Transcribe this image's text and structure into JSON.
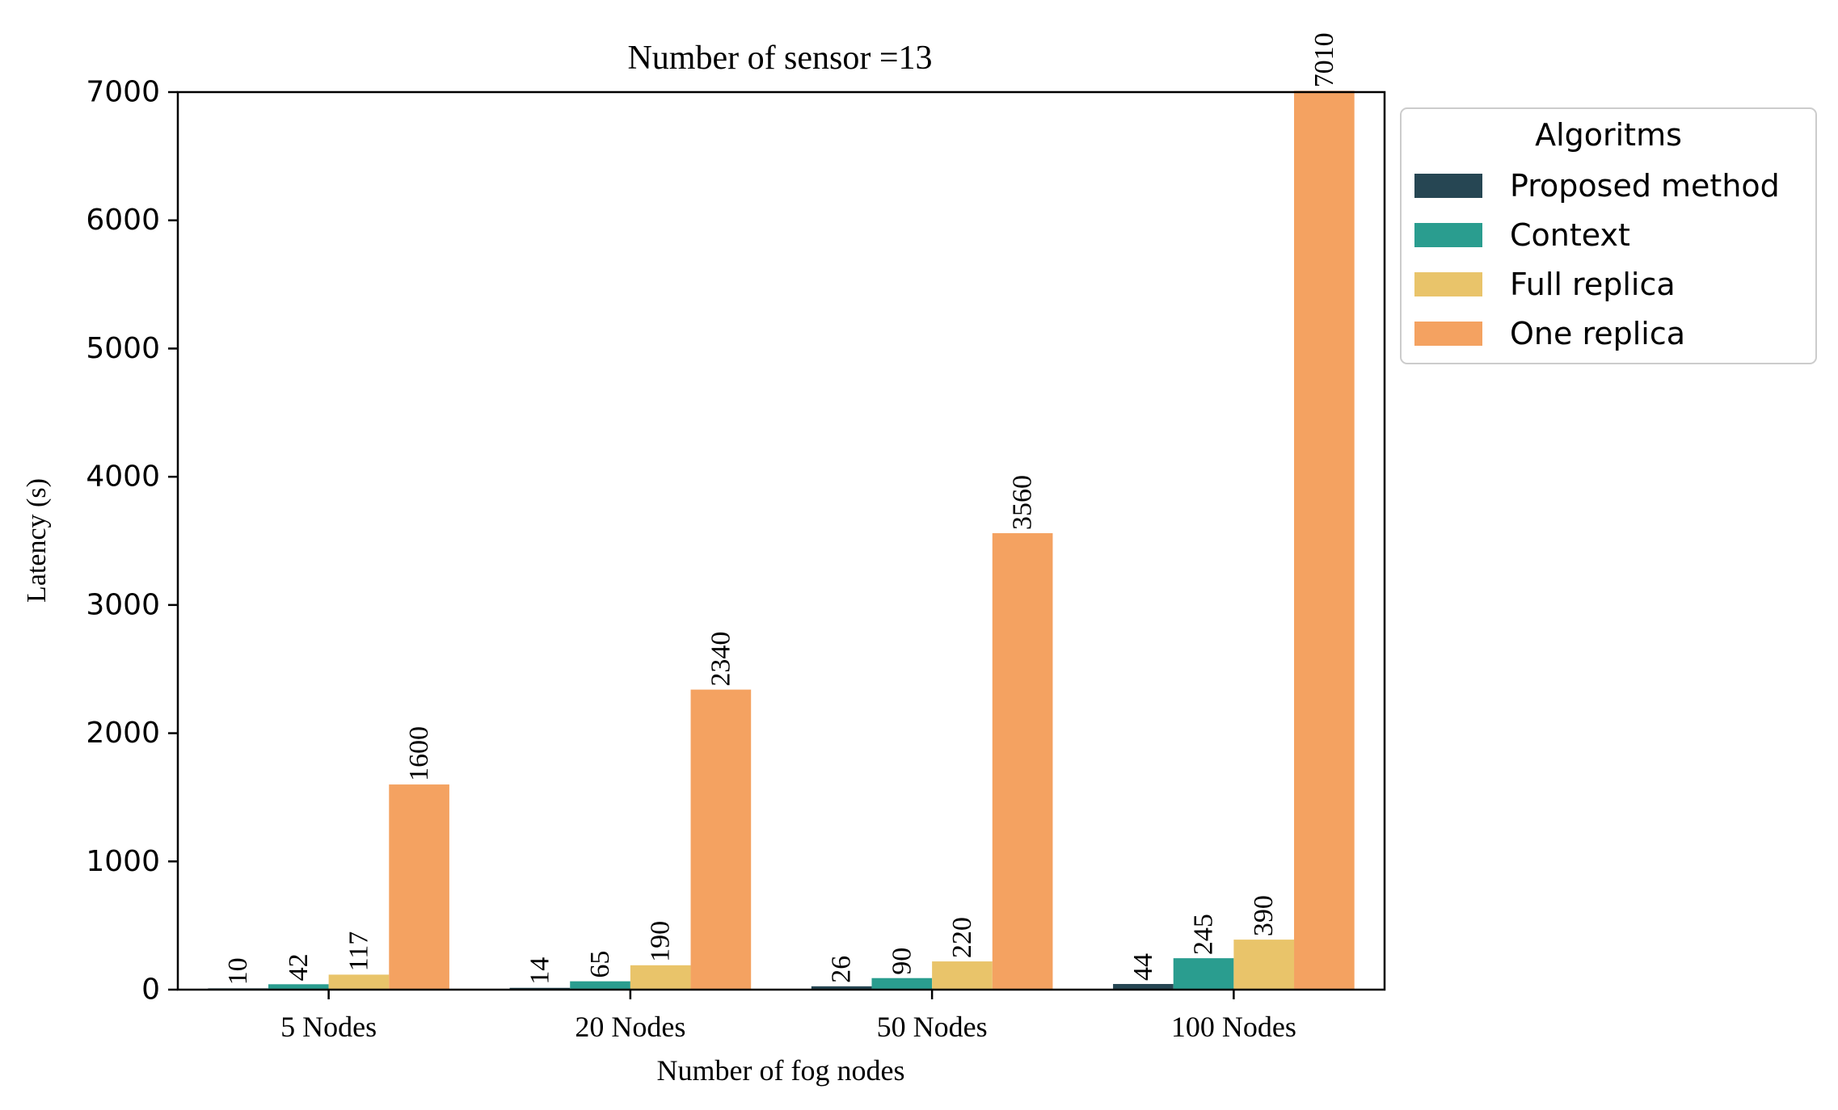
{
  "chart_data": {
    "type": "bar",
    "title": "Number of sensor =13",
    "xlabel": "Number of fog nodes",
    "ylabel": "Latency (s)",
    "categories": [
      "5 Nodes",
      "20 Nodes",
      "50 Nodes",
      "100 Nodes"
    ],
    "ylim": [
      0,
      7000
    ],
    "yticks": [
      0,
      1000,
      2000,
      3000,
      4000,
      5000,
      6000,
      7000
    ],
    "grid": false,
    "legend": {
      "title": "Algoritms",
      "placement": "outside-top-right"
    },
    "series": [
      {
        "name": "Proposed method",
        "color": "#264653",
        "values": [
          10,
          14,
          26,
          44
        ],
        "labels": [
          "10",
          "14",
          "26",
          "44"
        ]
      },
      {
        "name": "Context",
        "color": "#2a9d8f",
        "values": [
          42,
          65,
          90,
          245
        ],
        "labels": [
          "42",
          "65",
          "90",
          "245"
        ]
      },
      {
        "name": "Full replica",
        "color": "#e9c46a",
        "values": [
          117,
          190,
          220,
          390
        ],
        "labels": [
          "117",
          "190",
          "220",
          "390"
        ]
      },
      {
        "name": "One replica",
        "color": "#f4a261",
        "values": [
          1600,
          2340,
          3560,
          7010
        ],
        "labels": [
          "1600",
          "2340",
          "3560",
          "7010"
        ]
      }
    ]
  }
}
